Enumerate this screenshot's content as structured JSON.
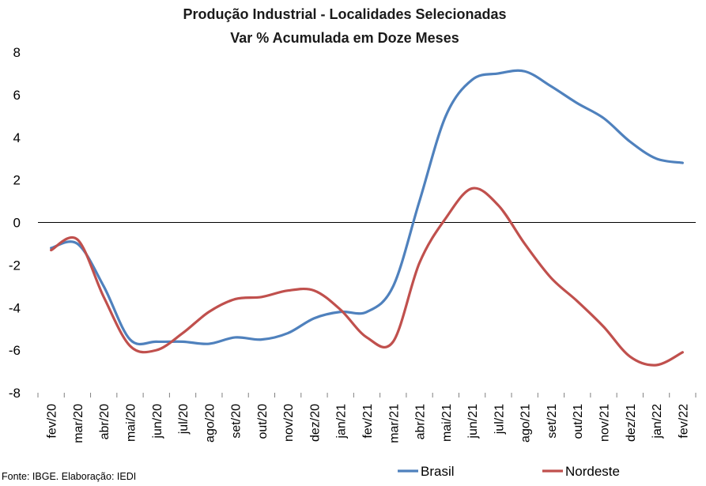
{
  "chart_data": {
    "type": "line",
    "title": [
      "Produção Industrial - Localidades Selecionadas",
      "Var % Acumulada em Doze Meses"
    ],
    "xlabel": "",
    "ylabel": "",
    "ylim": [
      -8,
      8
    ],
    "yticks": [
      8,
      6,
      4,
      2,
      0,
      -2,
      -4,
      -6,
      -8
    ],
    "categories": [
      "fev/20",
      "mar/20",
      "abr/20",
      "mai/20",
      "jun/20",
      "jul/20",
      "ago/20",
      "set/20",
      "out/20",
      "nov/20",
      "dez/20",
      "jan/21",
      "fev/21",
      "mar/21",
      "abr/21",
      "mai/21",
      "jun/21",
      "jul/21",
      "ago/21",
      "set/21",
      "out/21",
      "nov/21",
      "dez/21",
      "jan/22",
      "fev/22"
    ],
    "series": [
      {
        "name": "Brasil",
        "color": "#4f81bd",
        "values": [
          -1.2,
          -1.0,
          -3.0,
          -5.5,
          -5.6,
          -5.6,
          -5.7,
          -5.4,
          -5.5,
          -5.2,
          -4.5,
          -4.2,
          -4.2,
          -3.0,
          1.0,
          5.0,
          6.7,
          7.0,
          7.1,
          6.4,
          5.6,
          4.9,
          3.8,
          3.0,
          2.8
        ]
      },
      {
        "name": "Nordeste",
        "color": "#c0504d",
        "values": [
          -1.3,
          -0.8,
          -3.5,
          -5.8,
          -6.0,
          -5.2,
          -4.2,
          -3.6,
          -3.5,
          -3.2,
          -3.2,
          -4.1,
          -5.4,
          -5.6,
          -1.9,
          0.2,
          1.6,
          0.8,
          -1.0,
          -2.6,
          -3.7,
          -4.9,
          -6.3,
          -6.7,
          -6.1
        ]
      }
    ],
    "zero_line": true,
    "grid": false,
    "legend_position": "bottom"
  },
  "source_note": "Fonte: IBGE. Elaboração: IEDI"
}
